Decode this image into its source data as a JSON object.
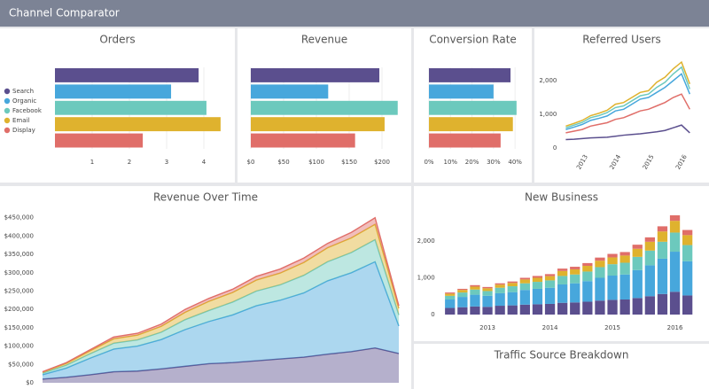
{
  "header": {
    "title": "Channel Comparator"
  },
  "chart_data": [
    {
      "type": "bar",
      "orientation": "horizontal",
      "title": "Orders",
      "legend": "left",
      "grid": true,
      "categories": [
        "Search",
        "Organic",
        "Facebook",
        "Email",
        "Display"
      ],
      "values": [
        3.86,
        3.12,
        4.07,
        4.45,
        2.36
      ],
      "colors": [
        "#5b4f8e",
        "#47a7dc",
        "#6cc9bd",
        "#dfb22e",
        "#e06e69"
      ],
      "xlim": [
        0,
        4.8
      ],
      "xticks": [
        1,
        2,
        3,
        4
      ]
    },
    {
      "type": "bar",
      "orientation": "horizontal",
      "title": "Revenue",
      "grid": true,
      "values": [
        196,
        118,
        224,
        204,
        159
      ],
      "colors": [
        "#5b4f8e",
        "#47a7dc",
        "#6cc9bd",
        "#dfb22e",
        "#e06e69"
      ],
      "xlim": [
        0,
        225
      ],
      "xticks": [
        {
          "value": 0,
          "label": "$0"
        },
        {
          "value": 50,
          "label": "$50"
        },
        {
          "value": 100,
          "label": "$100"
        },
        {
          "value": 150,
          "label": "$150"
        },
        {
          "value": 200,
          "label": "$200"
        }
      ]
    },
    {
      "type": "bar",
      "orientation": "horizontal",
      "title": "Conversion Rate",
      "grid": true,
      "values": [
        37.9,
        30,
        40.7,
        39,
        33.3
      ],
      "colors": [
        "#5b4f8e",
        "#47a7dc",
        "#6cc9bd",
        "#dfb22e",
        "#e06e69"
      ],
      "xlim": [
        0,
        42
      ],
      "xticks": [
        {
          "value": 0,
          "label": "0%"
        },
        {
          "value": 10,
          "label": "10%"
        },
        {
          "value": 20,
          "label": "20%"
        },
        {
          "value": 30,
          "label": "30%"
        },
        {
          "value": 40,
          "label": "40%"
        }
      ]
    },
    {
      "type": "line",
      "title": "Referred Users",
      "x": [
        2012.5,
        2012.75,
        2013,
        2013.25,
        2013.5,
        2013.75,
        2014,
        2014.25,
        2014.5,
        2014.75,
        2015,
        2015.25,
        2015.5,
        2015.75,
        2016,
        2016.25
      ],
      "series": [
        {
          "name": "Email",
          "color": "#dfb22e",
          "values": [
            650,
            730,
            820,
            960,
            1030,
            1120,
            1300,
            1350,
            1500,
            1650,
            1700,
            1950,
            2100,
            2350,
            2550,
            1900
          ]
        },
        {
          "name": "Facebook",
          "color": "#6cc9bd",
          "values": [
            600,
            680,
            760,
            900,
            960,
            1050,
            1200,
            1250,
            1400,
            1550,
            1600,
            1800,
            1950,
            2200,
            2400,
            1750
          ]
        },
        {
          "name": "Organic",
          "color": "#47a7dc",
          "values": [
            550,
            620,
            700,
            820,
            880,
            950,
            1100,
            1150,
            1300,
            1450,
            1500,
            1650,
            1800,
            2000,
            2200,
            1600
          ]
        },
        {
          "name": "Display",
          "color": "#e06e69",
          "values": [
            450,
            500,
            550,
            650,
            700,
            750,
            850,
            900,
            1000,
            1100,
            1150,
            1250,
            1350,
            1500,
            1600,
            1150
          ]
        },
        {
          "name": "Search",
          "color": "#5b4f8e",
          "values": [
            250,
            260,
            280,
            300,
            310,
            320,
            350,
            380,
            400,
            420,
            450,
            480,
            520,
            600,
            680,
            450
          ]
        }
      ],
      "xlim": [
        2012.5,
        2016.4
      ],
      "xticks": [
        2013,
        2014,
        2015,
        2016
      ],
      "ylim": [
        0,
        2800
      ],
      "yticks": [
        0,
        {
          "value": 1000,
          "label": "1,000"
        },
        {
          "value": 2000,
          "label": "2,000"
        }
      ]
    },
    {
      "type": "area",
      "stacked": true,
      "title": "Revenue Over Time",
      "x": [
        2012.5,
        2012.75,
        2013,
        2013.25,
        2013.5,
        2013.75,
        2014,
        2014.25,
        2014.5,
        2014.75,
        2015,
        2015.25,
        2015.5,
        2015.75,
        2016,
        2016.25
      ],
      "series": [
        {
          "name": "Search",
          "color": "#5b4f8e",
          "values": [
            10000,
            15000,
            22000,
            30000,
            32000,
            38000,
            45000,
            52000,
            55000,
            60000,
            65000,
            70000,
            78000,
            85000,
            95000,
            80000
          ]
        },
        {
          "name": "Organic",
          "color": "#47a7dc",
          "values": [
            12000,
            25000,
            45000,
            62000,
            68000,
            80000,
            100000,
            115000,
            130000,
            150000,
            160000,
            175000,
            200000,
            215000,
            235000,
            75000
          ]
        },
        {
          "name": "Facebook",
          "color": "#6cc9bd",
          "values": [
            4000,
            8000,
            12000,
            16000,
            17000,
            20000,
            27000,
            30000,
            35000,
            40000,
            42000,
            48000,
            52000,
            55000,
            60000,
            30000
          ]
        },
        {
          "name": "Email",
          "color": "#dfb22e",
          "values": [
            3000,
            5000,
            8000,
            12000,
            13000,
            16000,
            20000,
            25000,
            26000,
            30000,
            32000,
            35000,
            38000,
            40000,
            42000,
            18000
          ]
        },
        {
          "name": "Display",
          "color": "#e06e69",
          "values": [
            1000,
            2000,
            3000,
            5000,
            5000,
            6000,
            8000,
            8000,
            9000,
            10000,
            11000,
            12000,
            12000,
            15000,
            18000,
            7000
          ]
        }
      ],
      "xlim": [
        2012.5,
        2016.25
      ],
      "ylim": [
        0,
        480000
      ],
      "yticks": [
        {
          "value": 0,
          "label": "$0"
        },
        {
          "value": 50000,
          "label": "$50,000"
        },
        {
          "value": 100000,
          "label": "$100,000"
        },
        {
          "value": 150000,
          "label": "$150,000"
        },
        {
          "value": 200000,
          "label": "$200,000"
        },
        {
          "value": 250000,
          "label": "$250,000"
        },
        {
          "value": 300000,
          "label": "$300,000"
        },
        {
          "value": 350000,
          "label": "$350,000"
        },
        {
          "value": 400000,
          "label": "$400,000"
        },
        {
          "value": 450000,
          "label": "$450,000"
        }
      ]
    },
    {
      "type": "bar",
      "stacked": true,
      "title": "New Business",
      "x": [
        2012.4,
        2012.6,
        2012.8,
        2013,
        2013.2,
        2013.4,
        2013.6,
        2013.8,
        2014,
        2014.2,
        2014.4,
        2014.6,
        2014.8,
        2015,
        2015.2,
        2015.4,
        2015.6,
        2015.8,
        2016,
        2016.2
      ],
      "series": [
        {
          "name": "Search",
          "color": "#5b4f8e",
          "values": [
            180,
            200,
            220,
            210,
            240,
            250,
            270,
            280,
            290,
            320,
            330,
            350,
            380,
            400,
            410,
            450,
            500,
            560,
            620,
            520
          ]
        },
        {
          "name": "Organic",
          "color": "#47a7dc",
          "values": [
            230,
            280,
            320,
            300,
            340,
            360,
            400,
            420,
            440,
            500,
            520,
            560,
            620,
            660,
            680,
            760,
            840,
            960,
            1090,
            930
          ]
        },
        {
          "name": "Facebook",
          "color": "#6cc9bd",
          "values": [
            100,
            120,
            140,
            130,
            150,
            160,
            180,
            190,
            200,
            230,
            240,
            260,
            290,
            310,
            320,
            360,
            400,
            460,
            520,
            440
          ]
        },
        {
          "name": "Email",
          "color": "#dfb22e",
          "values": [
            60,
            70,
            80,
            75,
            85,
            90,
            105,
            110,
            115,
            135,
            140,
            155,
            175,
            185,
            195,
            220,
            240,
            280,
            320,
            270
          ]
        },
        {
          "name": "Display",
          "color": "#e06e69",
          "values": [
            30,
            30,
            40,
            35,
            35,
            40,
            45,
            50,
            55,
            65,
            70,
            75,
            85,
            95,
            95,
            110,
            120,
            140,
            150,
            140
          ]
        }
      ],
      "xlim": [
        2012.3,
        2016.3
      ],
      "xticks": [
        2013,
        2014,
        2015,
        2016
      ],
      "ylim": [
        0,
        2800
      ],
      "yticks": [
        0,
        {
          "value": 1000,
          "label": "1,000"
        },
        {
          "value": 2000,
          "label": "2,000"
        }
      ]
    },
    {
      "title": "Traffic Source Breakdown"
    }
  ]
}
